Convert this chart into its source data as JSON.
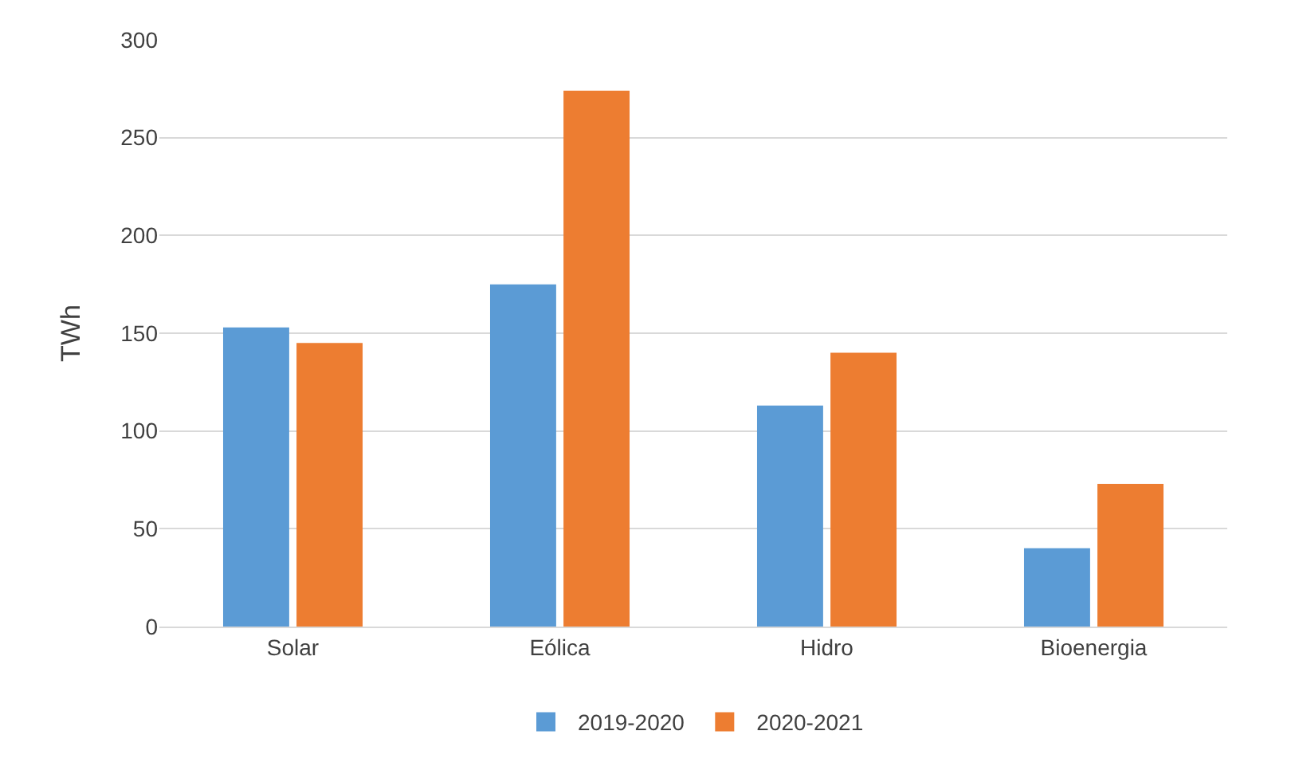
{
  "chart_data": {
    "type": "bar",
    "ylabel": "TWh",
    "categories": [
      "Solar",
      "Eólica",
      "Hidro",
      "Bioenergia"
    ],
    "series": [
      {
        "name": "2019-2020",
        "color": "#5b9bd5",
        "values": [
          153,
          175,
          113,
          40
        ]
      },
      {
        "name": "2020-2021",
        "color": "#ed7d31",
        "values": [
          145,
          274,
          140,
          73
        ]
      }
    ],
    "ylim": [
      0,
      300
    ],
    "yticks": [
      0,
      50,
      100,
      150,
      200,
      250,
      300
    ],
    "grid": "y",
    "legend": "bottom"
  }
}
